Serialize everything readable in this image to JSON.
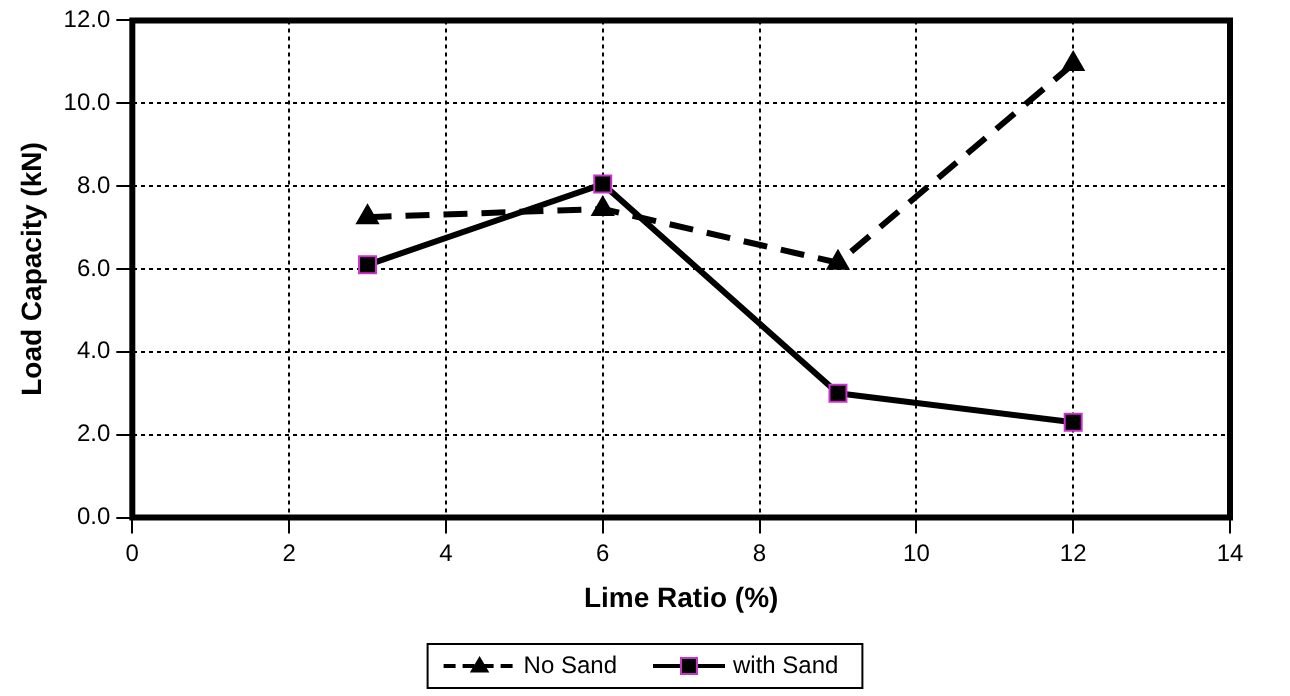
{
  "chart_data": {
    "type": "line",
    "xlabel": "Lime Ratio (%)",
    "ylabel": "Load Capacity (kN)",
    "x": [
      3,
      6,
      9,
      12
    ],
    "series": [
      {
        "name": "No Sand",
        "color": "#000000",
        "values": [
          7.25,
          7.45,
          6.15,
          10.95
        ],
        "marker": "triangle",
        "line_style": "dashed"
      },
      {
        "name": "with Sand",
        "color": "#000000",
        "values": [
          6.1,
          8.05,
          3.0,
          2.3
        ],
        "marker": "square",
        "line_style": "solid"
      }
    ],
    "xlim": [
      0,
      14
    ],
    "xticks": [
      0,
      2,
      4,
      6,
      8,
      10,
      12,
      14
    ],
    "ylim": [
      0,
      12
    ],
    "yticks": [
      {
        "value": 0,
        "label": "0.0"
      },
      {
        "value": 2,
        "label": "2.0"
      },
      {
        "value": 4,
        "label": "4.0"
      },
      {
        "value": 6,
        "label": "6.0"
      },
      {
        "value": 8,
        "label": "8.0"
      },
      {
        "value": 10,
        "label": "10.0"
      },
      {
        "value": 12,
        "label": "12.0"
      }
    ],
    "grid": true,
    "legend": "bottom"
  }
}
